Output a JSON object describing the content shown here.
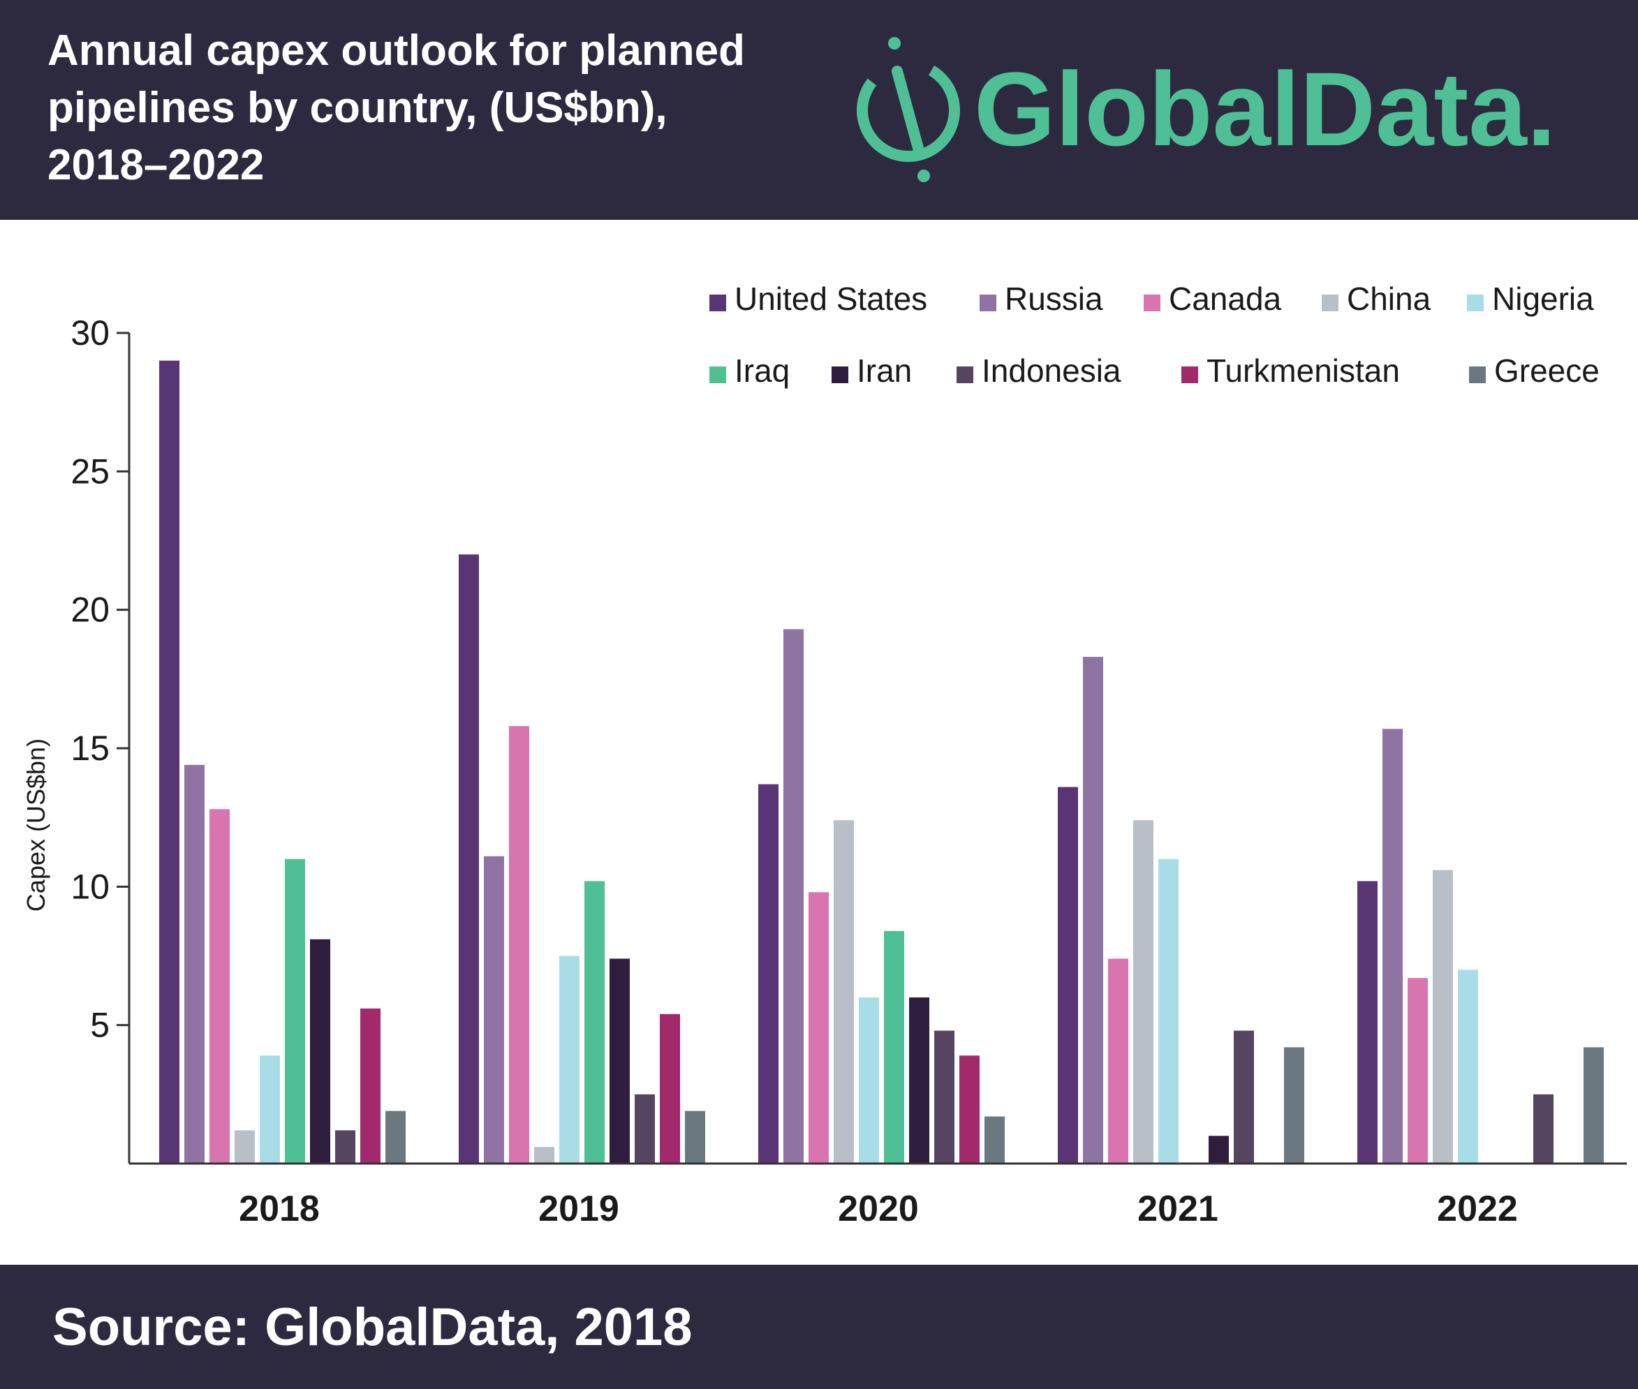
{
  "header": {
    "title": "Annual capex outlook for planned\npipelines by country, (US$bn),\n2018–2022",
    "logo_text": "GlobalData.",
    "logo_color": "#4fc095",
    "background": "#2d2a3f"
  },
  "footer": {
    "source": "Source: GlobalData, 2018"
  },
  "chart_data": {
    "type": "bar",
    "title": "Annual capex outlook for planned pipelines by country, (US$bn), 2018–2022",
    "xlabel": "",
    "ylabel": "Capex (US$bn)",
    "ylim": [
      0,
      30
    ],
    "yticks": [
      5,
      10,
      15,
      20,
      25,
      30
    ],
    "grid": false,
    "legend": "top-right",
    "categories": [
      "2018",
      "2019",
      "2020",
      "2021",
      "2022"
    ],
    "series": [
      {
        "name": "United States",
        "color": "#5a3575",
        "values": [
          29.0,
          22.0,
          13.7,
          13.6,
          10.2
        ]
      },
      {
        "name": "Russia",
        "color": "#8f73a3",
        "values": [
          14.4,
          11.1,
          19.3,
          18.3,
          15.7
        ]
      },
      {
        "name": "Canada",
        "color": "#d874ae",
        "values": [
          12.8,
          15.8,
          9.8,
          7.4,
          6.7
        ]
      },
      {
        "name": "China",
        "color": "#b8bfc7",
        "values": [
          1.2,
          0.6,
          12.4,
          12.4,
          10.6
        ]
      },
      {
        "name": "Nigeria",
        "color": "#a8dde8",
        "values": [
          3.9,
          7.5,
          6.0,
          11.0,
          7.0
        ]
      },
      {
        "name": "Iraq",
        "color": "#4fc095",
        "values": [
          11.0,
          10.2,
          8.4,
          0,
          0
        ]
      },
      {
        "name": "Iran",
        "color": "#2f1d40",
        "values": [
          8.1,
          7.4,
          6.0,
          1.0,
          0
        ]
      },
      {
        "name": "Indonesia",
        "color": "#554560",
        "values": [
          1.2,
          2.5,
          4.8,
          4.8,
          2.5
        ]
      },
      {
        "name": "Turkmenistan",
        "color": "#a3296d",
        "values": [
          5.6,
          5.4,
          3.9,
          0,
          0
        ]
      },
      {
        "name": "Greece",
        "color": "#6b7880",
        "values": [
          1.9,
          1.9,
          1.7,
          4.2,
          4.2
        ]
      }
    ]
  }
}
